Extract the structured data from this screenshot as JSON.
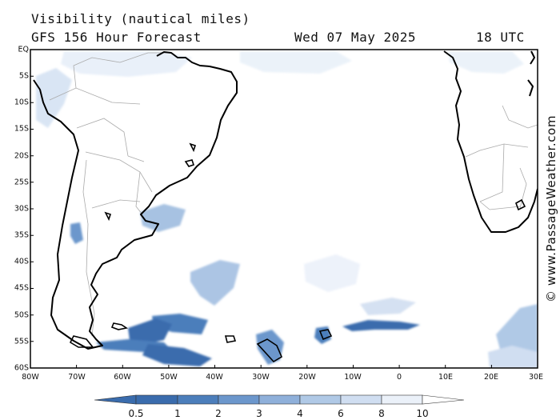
{
  "header": {
    "title": "Visibility (nautical miles)",
    "subtitle": "GFS 156 Hour Forecast",
    "date": "Wed 07 May 2025",
    "time": "18 UTC"
  },
  "watermark": "© www.PassageWeather.com",
  "map": {
    "lat_labels": [
      "EQ",
      "5S",
      "10S",
      "15S",
      "20S",
      "25S",
      "30S",
      "35S",
      "40S",
      "45S",
      "50S",
      "55S",
      "60S"
    ],
    "lon_labels": [
      "80W",
      "70W",
      "60W",
      "50W",
      "40W",
      "30W",
      "20W",
      "10W",
      "0",
      "10E",
      "20E",
      "30E"
    ]
  },
  "legend": {
    "labels": [
      "0.5",
      "1",
      "2",
      "3",
      "4",
      "6",
      "8",
      "10"
    ],
    "colors": [
      "#3a6cad",
      "#4c7ebb",
      "#6c97cc",
      "#8fb0da",
      "#b0c9e6",
      "#d0def1",
      "#ebf1f9",
      "#ffffff"
    ]
  }
}
